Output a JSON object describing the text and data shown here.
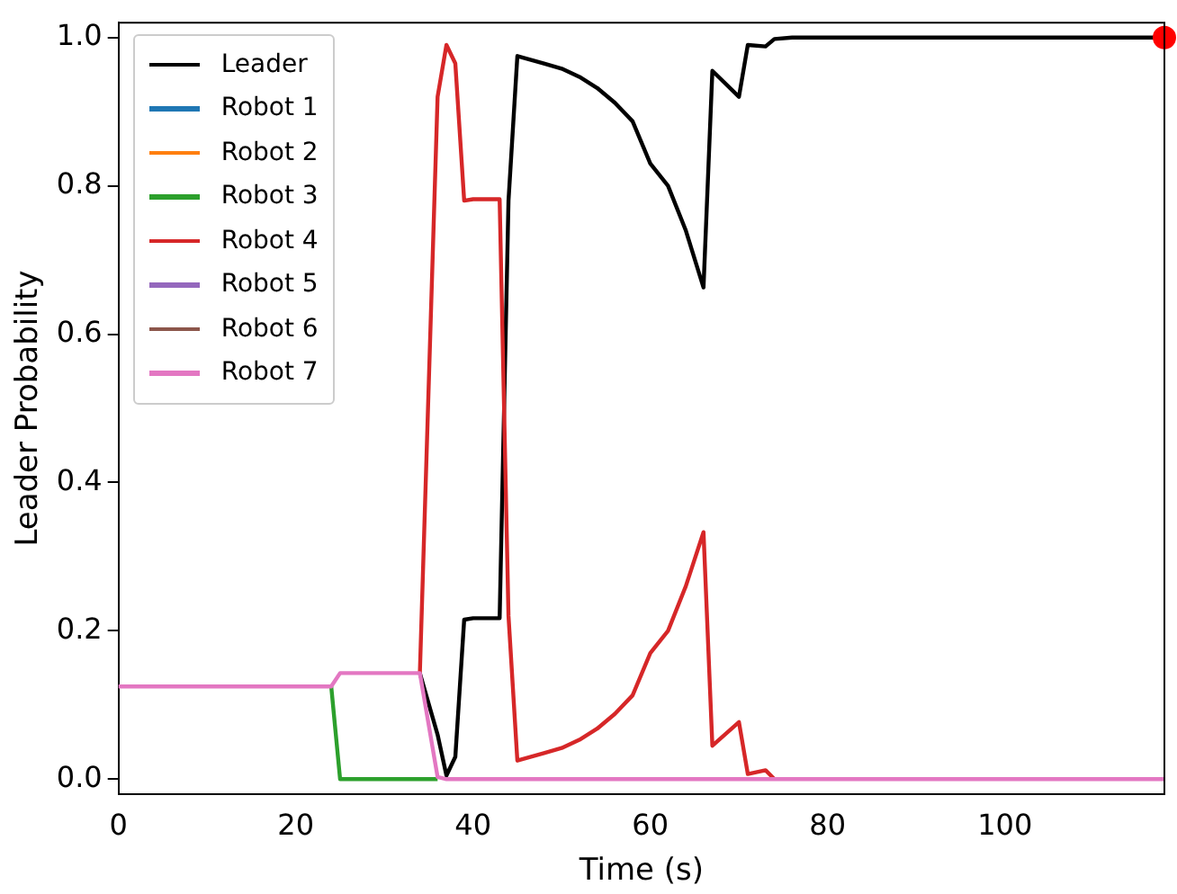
{
  "chart_data": {
    "type": "line",
    "xlabel": "Time (s)",
    "ylabel": "Leader Probability",
    "x": [
      0,
      5,
      10,
      15,
      20,
      24,
      25,
      30,
      34,
      36,
      37,
      38,
      39,
      40,
      43,
      44,
      45,
      48,
      50,
      52,
      54,
      56,
      58,
      60,
      62,
      64,
      66,
      67,
      70,
      71,
      73,
      74,
      76,
      80,
      90,
      100,
      110,
      118
    ],
    "series": [
      {
        "name": "Leader",
        "color": "#000000",
        "values": [
          null,
          null,
          null,
          null,
          null,
          null,
          null,
          null,
          0.143,
          0.06,
          0.005,
          0.03,
          0.215,
          0.217,
          0.217,
          0.78,
          0.975,
          0.965,
          0.958,
          0.947,
          0.932,
          0.912,
          0.887,
          0.83,
          0.8,
          0.74,
          0.663,
          0.955,
          0.92,
          0.99,
          0.988,
          0.998,
          1.0,
          1.0,
          1.0,
          1.0,
          1.0,
          1.0
        ]
      },
      {
        "name": "Robot 1",
        "color": "#1f77b4",
        "values": [
          null,
          null,
          null,
          null,
          null,
          null,
          null,
          null,
          null,
          null,
          null,
          null,
          null,
          null,
          null,
          null,
          null,
          null,
          null,
          null,
          null,
          null,
          null,
          null,
          null,
          null,
          null,
          null,
          null,
          null,
          null,
          null,
          null,
          null,
          null,
          null,
          null,
          null
        ]
      },
      {
        "name": "Robot 2",
        "color": "#ff7f0e",
        "values": [
          null,
          null,
          null,
          null,
          null,
          null,
          null,
          null,
          null,
          null,
          null,
          null,
          null,
          null,
          null,
          null,
          null,
          null,
          null,
          null,
          null,
          null,
          null,
          null,
          null,
          null,
          null,
          null,
          null,
          null,
          null,
          null,
          null,
          null,
          null,
          null,
          null,
          null
        ]
      },
      {
        "name": "Robot 3",
        "color": "#2ca02c",
        "values": [
          null,
          null,
          null,
          null,
          null,
          0.125,
          0,
          0,
          0,
          0,
          null,
          null,
          null,
          null,
          null,
          null,
          null,
          null,
          null,
          null,
          null,
          null,
          null,
          null,
          null,
          null,
          null,
          null,
          null,
          null,
          null,
          null,
          null,
          null,
          null,
          null,
          null,
          null
        ]
      },
      {
        "name": "Robot 4",
        "color": "#d62728",
        "values": [
          null,
          null,
          null,
          null,
          null,
          null,
          null,
          null,
          0.143,
          0.92,
          0.99,
          0.965,
          0.78,
          0.782,
          0.782,
          0.22,
          0.025,
          0.035,
          0.042,
          0.053,
          0.068,
          0.088,
          0.113,
          0.17,
          0.2,
          0.26,
          0.333,
          0.045,
          0.077,
          0.007,
          0.012,
          0,
          null,
          null,
          null,
          null,
          null,
          null
        ]
      },
      {
        "name": "Robot 5",
        "color": "#9467bd",
        "values": [
          null,
          null,
          null,
          null,
          null,
          null,
          null,
          null,
          null,
          null,
          null,
          null,
          null,
          null,
          null,
          null,
          null,
          null,
          null,
          null,
          null,
          null,
          null,
          null,
          null,
          null,
          null,
          null,
          null,
          null,
          null,
          null,
          null,
          null,
          null,
          null,
          null,
          null
        ]
      },
      {
        "name": "Robot 6",
        "color": "#8c564b",
        "values": [
          null,
          null,
          null,
          null,
          null,
          null,
          null,
          null,
          null,
          null,
          null,
          null,
          null,
          null,
          null,
          null,
          null,
          null,
          null,
          null,
          null,
          null,
          null,
          null,
          null,
          null,
          null,
          null,
          null,
          null,
          null,
          null,
          null,
          null,
          null,
          null,
          null,
          null
        ]
      },
      {
        "name": "Robot 7",
        "color": "#e377c2",
        "values": [
          0.125,
          0.125,
          0.125,
          0.125,
          0.125,
          0.125,
          0.143,
          0.143,
          0.143,
          0.003,
          0,
          0,
          0,
          0,
          0,
          0,
          0,
          0,
          0,
          0,
          0,
          0,
          0,
          0,
          0,
          0,
          0,
          0,
          0,
          0,
          0,
          0,
          0,
          0,
          0,
          0,
          0,
          0
        ]
      },
      {
        "type": "scatter",
        "color": "#ff0000",
        "marker": "circle",
        "x": [
          118
        ],
        "values": [
          1.0
        ]
      }
    ],
    "xlim": [
      0,
      118
    ],
    "xticks": [
      0,
      20,
      40,
      60,
      80,
      100
    ],
    "ylim": [
      -0.02,
      1.02
    ],
    "yticks": [
      {
        "value": 0,
        "label": "0.0"
      },
      {
        "value": 0.2,
        "label": "0.2"
      },
      {
        "value": 0.4,
        "label": "0.4"
      },
      {
        "value": 0.6,
        "label": "0.6"
      },
      {
        "value": 0.8,
        "label": "0.8"
      },
      {
        "value": 1.0,
        "label": "1.0"
      }
    ],
    "grid": false,
    "legend": "top left",
    "marker": "none",
    "line_style": "solid"
  }
}
